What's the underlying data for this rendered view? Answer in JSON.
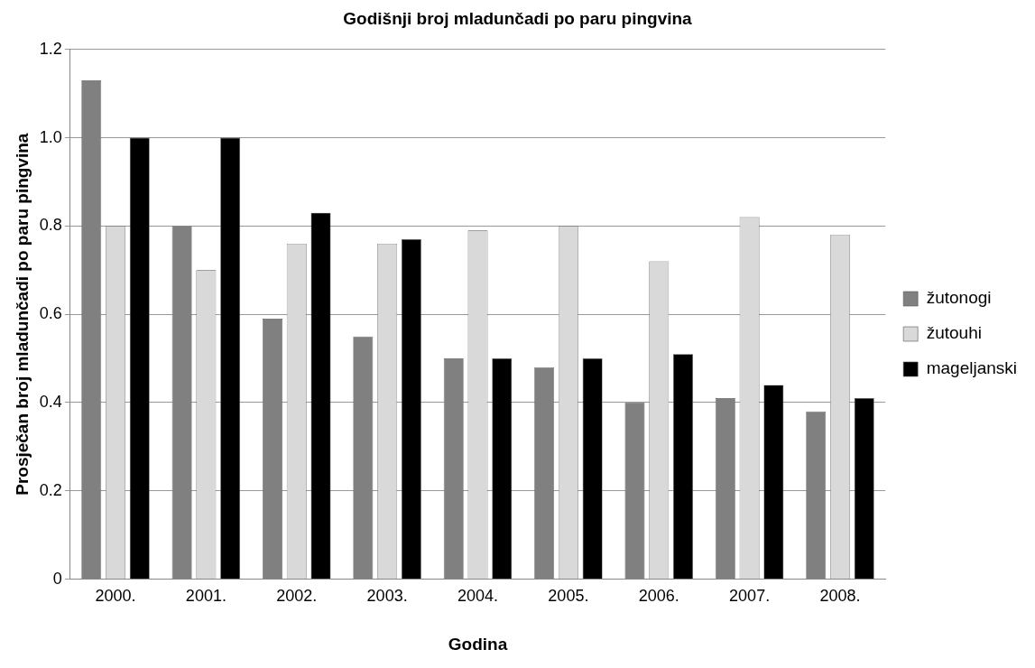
{
  "chart_data": {
    "type": "bar",
    "title": "Godišnji broj mladunčadi po paru pingvina",
    "xlabel": "Godina",
    "ylabel": "Prosječan broj mladunčadi po paru pingvina",
    "categories": [
      "2000.",
      "2001.",
      "2002.",
      "2003.",
      "2004.",
      "2005.",
      "2006.",
      "2007.",
      "2008."
    ],
    "series": [
      {
        "name": "žutonogi",
        "color": "#808080",
        "values": [
          1.13,
          0.8,
          0.59,
          0.55,
          0.5,
          0.48,
          0.4,
          0.41,
          0.38
        ]
      },
      {
        "name": "žutouhi",
        "color": "#d9d9d9",
        "values": [
          0.8,
          0.7,
          0.76,
          0.76,
          0.79,
          0.8,
          0.72,
          0.82,
          0.78
        ]
      },
      {
        "name": "mageljanski",
        "color": "#000000",
        "values": [
          1.0,
          1.0,
          0.83,
          0.77,
          0.5,
          0.5,
          0.51,
          0.44,
          0.41
        ]
      }
    ],
    "ylim": [
      0,
      1.2
    ],
    "yticks": [
      0,
      0.2,
      0.4,
      0.6,
      0.8,
      {
        "value": 1,
        "label": "1.0"
      },
      1.2
    ],
    "grid": "y",
    "legend": "right"
  }
}
